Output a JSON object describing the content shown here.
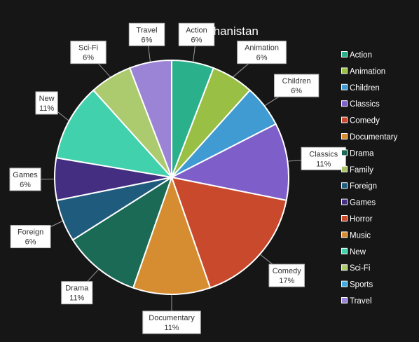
{
  "chart_data": {
    "type": "pie",
    "title": "Afghanistan",
    "legend_position": "right",
    "slices": [
      {
        "label": "Action",
        "value": 6,
        "display": "6%",
        "color": "#2bb08c"
      },
      {
        "label": "Animation",
        "value": 6,
        "display": "6%",
        "color": "#99bf45"
      },
      {
        "label": "Children",
        "value": 6,
        "display": "6%",
        "color": "#3f9bd1"
      },
      {
        "label": "Classics",
        "value": 11,
        "display": "11%",
        "color": "#7e5fc9"
      },
      {
        "label": "Comedy",
        "value": 17,
        "display": "17%",
        "color": "#c9492c"
      },
      {
        "label": "Documentary",
        "value": 11,
        "display": "11%",
        "color": "#d68c30"
      },
      {
        "label": "Drama",
        "value": 11,
        "display": "11%",
        "color": "#1b6a56"
      },
      {
        "label": "Foreign",
        "value": 6,
        "display": "6%",
        "color": "#1f5b7d"
      },
      {
        "label": "Games",
        "value": 6,
        "display": "6%",
        "color": "#432e82"
      },
      {
        "label": "New",
        "value": 11,
        "display": "11%",
        "color": "#41d1ad"
      },
      {
        "label": "Sci-Fi",
        "value": 6,
        "display": "6%",
        "color": "#acca6e"
      },
      {
        "label": "Travel",
        "value": 6,
        "display": "6%",
        "color": "#9b84d6"
      }
    ],
    "legend": [
      {
        "label": "Action",
        "color": "#2bb08c"
      },
      {
        "label": "Animation",
        "color": "#99bf45"
      },
      {
        "label": "Children",
        "color": "#3f9bd1"
      },
      {
        "label": "Classics",
        "color": "#7e5fc9"
      },
      {
        "label": "Comedy",
        "color": "#c9492c"
      },
      {
        "label": "Documentary",
        "color": "#d68c30"
      },
      {
        "label": "Drama",
        "color": "#1b6a56"
      },
      {
        "label": "Family",
        "color": "#a7c264"
      },
      {
        "label": "Foreign",
        "color": "#1f5b7d"
      },
      {
        "label": "Games",
        "color": "#432e82"
      },
      {
        "label": "Horror",
        "color": "#c9492c"
      },
      {
        "label": "Music",
        "color": "#d68c30"
      },
      {
        "label": "New",
        "color": "#41d1ad"
      },
      {
        "label": "Sci-Fi",
        "color": "#acca6e"
      },
      {
        "label": "Sports",
        "color": "#41a9de"
      },
      {
        "label": "Travel",
        "color": "#9b84d6"
      }
    ]
  }
}
